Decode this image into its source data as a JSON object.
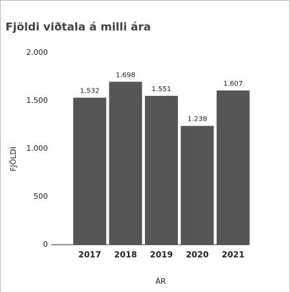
{
  "chart_data": {
    "type": "bar",
    "title": "Fjöldi viðtala á milli ára",
    "xlabel": "ÁR",
    "ylabel": "FJÖLDI",
    "categories": [
      "2017",
      "2018",
      "2019",
      "2020",
      "2021"
    ],
    "values": [
      1532,
      1698,
      1551,
      1238,
      1607
    ],
    "value_labels": [
      "1.532",
      "1.698",
      "1.551",
      "1.238",
      "1.607"
    ],
    "color": "#555555",
    "ylim": [
      0,
      2000
    ],
    "yticks": [
      0,
      500,
      {
        "value": 1000,
        "label": "1.000"
      },
      {
        "value": 1500,
        "label": "1.500"
      },
      {
        "value": 2000,
        "label": "2.000"
      }
    ],
    "grid": false
  }
}
